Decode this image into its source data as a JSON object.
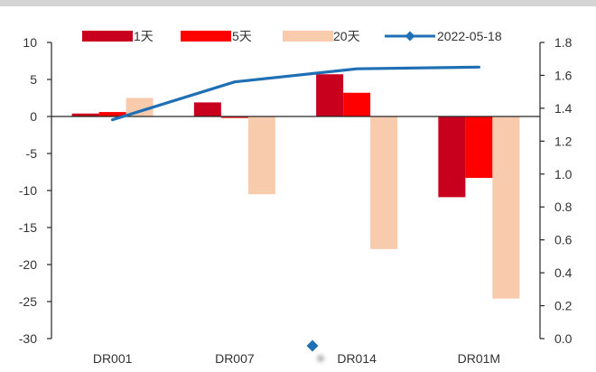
{
  "chart_data": {
    "type": "bar",
    "categories": [
      "DR001",
      "DR007",
      "DR014",
      "DR01M"
    ],
    "series": [
      {
        "name": "1天",
        "type": "bar",
        "axis": "left",
        "color": "#C8001E",
        "values": [
          0.4,
          1.9,
          5.7,
          -10.9
        ]
      },
      {
        "name": "5天",
        "type": "bar",
        "axis": "left",
        "color": "#FF0000",
        "values": [
          0.6,
          -0.2,
          3.2,
          -8.3
        ]
      },
      {
        "name": "20天",
        "type": "bar",
        "axis": "left",
        "color": "#F8CBAD",
        "values": [
          2.5,
          -10.5,
          -17.9,
          -24.6
        ]
      },
      {
        "name": "2022-05-18",
        "type": "line",
        "axis": "right",
        "color": "#1F6FB5",
        "marker": "diamond",
        "values": [
          1.33,
          1.56,
          1.64,
          1.65
        ]
      }
    ],
    "y_left": {
      "min": -30,
      "max": 10,
      "tick_labels": [
        "10",
        "5",
        "0",
        "-5",
        "-10",
        "-15",
        "-20",
        "-25",
        "-30"
      ]
    },
    "y_right": {
      "min": 0,
      "max": 1.8,
      "tick_labels": [
        "1.8",
        "1.6",
        "1.4",
        "1.2",
        "1.0",
        "0.8",
        "0.6",
        "0.4",
        "0.2",
        "0.0"
      ]
    },
    "legend_position": "top",
    "grid": false,
    "frame_band_color": "#D4D4D4"
  }
}
